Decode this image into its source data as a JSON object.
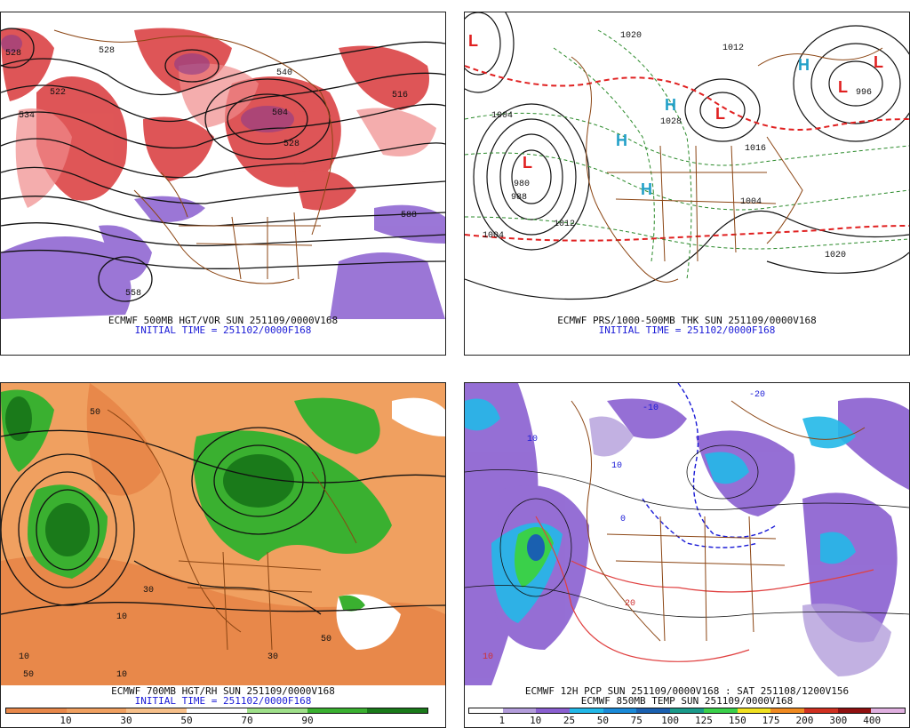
{
  "panels": {
    "tl": {
      "title": "ECMWF 500MB HGT/VOR SUN 251109/0000V168",
      "subtitle": "INITIAL TIME = 251102/0000F168",
      "contour_labels": [
        "528",
        "522",
        "528",
        "540",
        "516",
        "504",
        "528",
        "534",
        "588",
        "558"
      ]
    },
    "tr": {
      "title": "ECMWF PRS/1000-500MB THK SUN 251109/0000V168",
      "subtitle": "INITIAL TIME = 251102/0000F168",
      "contour_labels": [
        "1020",
        "1028",
        "1012",
        "1004",
        "996",
        "980",
        "988",
        "1004",
        "1012",
        "1016",
        "1020",
        "1004"
      ],
      "highs": [
        "H",
        "H",
        "H",
        "H"
      ],
      "lows": [
        "L",
        "L",
        "L",
        "L",
        "L"
      ]
    },
    "bl": {
      "title": "ECMWF 700MB HGT/RH SUN 251109/0000V168",
      "subtitle": "INITIAL TIME = 251102/0000F168",
      "contour_labels": [
        "50",
        "10",
        "30",
        "10",
        "50",
        "30",
        "50",
        "10"
      ]
    },
    "br": {
      "title": "ECMWF 12H PCP SUN 251109/0000V168 : SAT 251108/1200V156",
      "subtitle": "ECMWF 850MB TEMP SUN 251109/0000V168",
      "contour_labels": [
        "10",
        "10",
        "-10",
        "-20",
        "0",
        "20",
        "10"
      ]
    }
  },
  "legend_rh": {
    "ticks": [
      "10",
      "30",
      "50",
      "70",
      "90"
    ],
    "colors": [
      "#e8884a",
      "#f0a060",
      "#f7c08a",
      "#ffffff",
      "#9fe08a",
      "#3ab030",
      "#1a7a1a"
    ]
  },
  "legend_pcp": {
    "ticks": [
      "1",
      "10",
      "25",
      "50",
      "75",
      "100",
      "125",
      "150",
      "175",
      "200",
      "300",
      "400"
    ],
    "colors": [
      "#ffffff",
      "#b39ddb",
      "#8a5fd0",
      "#22b8e8",
      "#1a8ad8",
      "#1a60b0",
      "#1a9a8a",
      "#3ad04a",
      "#f0e020",
      "#f08a20",
      "#d03020",
      "#901010",
      "#e0b0e0"
    ]
  }
}
